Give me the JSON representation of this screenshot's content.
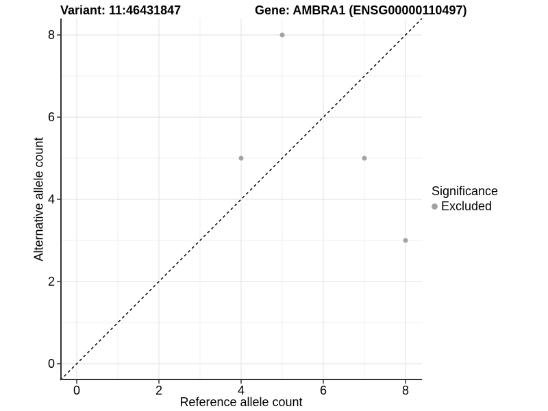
{
  "figure": {
    "title_left": "Variant: 11:46431847",
    "title_right": "Gene: AMBRA1 (ENSG00000110497)"
  },
  "chart_data": {
    "type": "scatter",
    "title": "Variant: 11:46431847   Gene: AMBRA1 (ENSG00000110497)",
    "xlabel": "Reference allele count",
    "ylabel": "Alternative allele count",
    "xlim": [
      -0.4,
      8.4
    ],
    "ylim": [
      -0.4,
      8.4
    ],
    "x_ticks": [
      0,
      2,
      4,
      6,
      8
    ],
    "y_ticks": [
      0,
      2,
      4,
      6,
      8
    ],
    "x_minor_ticks": [
      1,
      3,
      5,
      7
    ],
    "y_minor_ticks": [
      1,
      3,
      5,
      7
    ],
    "grid": true,
    "series": [
      {
        "name": "Excluded",
        "color": "#a3a3a3",
        "points": [
          {
            "x": 5,
            "y": 8
          },
          {
            "x": 4,
            "y": 5
          },
          {
            "x": 7,
            "y": 5
          },
          {
            "x": 8,
            "y": 3
          }
        ]
      }
    ],
    "identity_line": {
      "style": "dashed",
      "color": "#000000",
      "slope": 1,
      "intercept": 0
    },
    "legend": {
      "title": "Significance",
      "position": "right",
      "entries": [
        {
          "label": "Excluded",
          "color": "#a3a3a3"
        }
      ]
    }
  },
  "colors": {
    "background": "#ffffff",
    "axis_line": "#333333",
    "grid_major": "#e5e5e5",
    "grid_minor": "#efefef",
    "point": "#a3a3a3",
    "text": "#000000"
  }
}
